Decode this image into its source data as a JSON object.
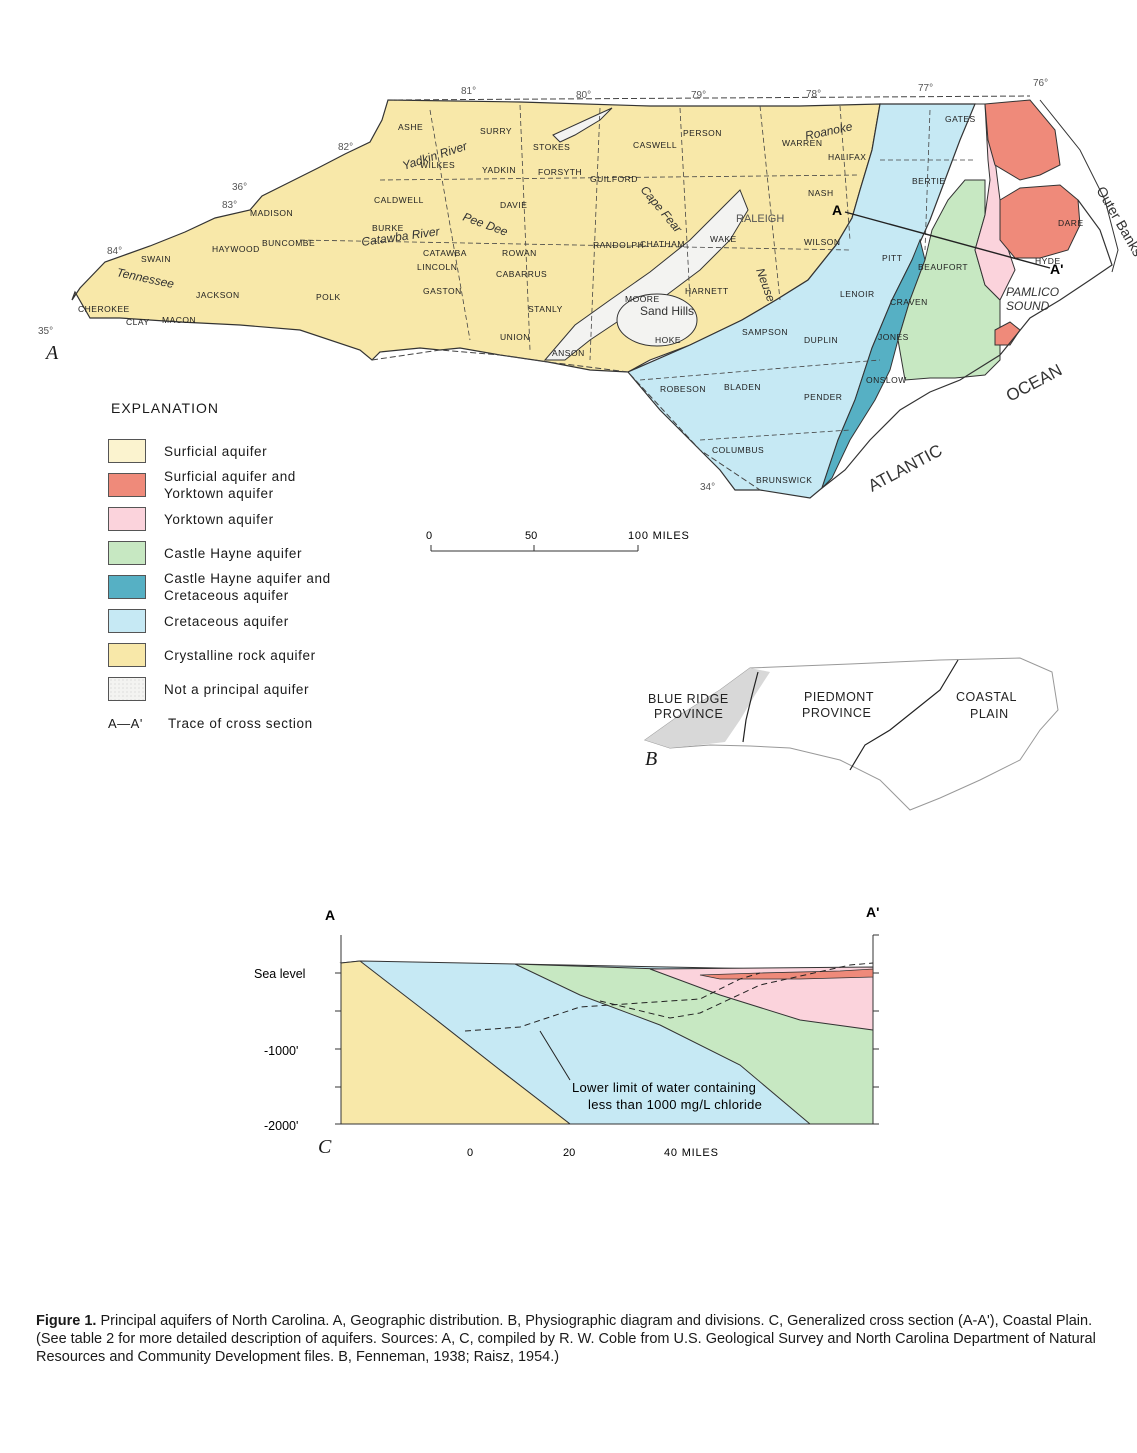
{
  "panel_a": {
    "letter": "A",
    "longitudes": [
      "81°",
      "80°",
      "79°",
      "78°",
      "77°",
      "76°"
    ],
    "latitudes": {
      "n36": "36°",
      "n35": "35°",
      "n34": "34°"
    },
    "west_longitudes": [
      "82°",
      "83°",
      "84°"
    ],
    "counties": [
      "ASHE",
      "SURRY",
      "STOKES",
      "PERSON",
      "CASWELL",
      "WARREN",
      "HALIFAX",
      "NASH",
      "WILKES",
      "YADKIN",
      "FORSYTH",
      "GUILFORD",
      "DAVIE",
      "ROWAN",
      "CABARRUS",
      "STANLY",
      "UNION",
      "ANSON",
      "RANDOLPH",
      "CHATHAM",
      "WAKE",
      "WILSON",
      "HARNETT",
      "MOORE",
      "HOKE",
      "SAMPSON",
      "DUPLIN",
      "ROBESON",
      "BLADEN",
      "COLUMBUS",
      "BRUNSWICK",
      "PENDER",
      "ONSLOW",
      "JONES",
      "CRAVEN",
      "LENOIR",
      "PITT",
      "BEAUFORT",
      "BERTIE",
      "GATES",
      "HYDE",
      "DARE",
      "MACON",
      "CHEROKEE",
      "CLAY",
      "MADISON",
      "BUNCOMBE",
      "BURKE",
      "CALDWELL",
      "CATAWBA",
      "LINCOLN",
      "GASTON",
      "POLK",
      "HAYWOOD",
      "JACKSON",
      "SWAIN"
    ],
    "places": {
      "raleigh": "RALEIGH",
      "sand_hills": "Sand Hills"
    },
    "rivers": {
      "yadkin": "Yadkin River",
      "catawba": "Catawba River",
      "neuse": "Neuse",
      "roanoke": "Roanoke",
      "pee_dee": "Pee Dee",
      "cape_fear": "Cape Fear",
      "tennessee": "Tennessee"
    },
    "water": {
      "outer_banks": "Outer Banks",
      "pamlico": "PAMLICO\nSOUND",
      "atlantic": "ATLANTIC",
      "ocean": "OCEAN"
    },
    "section_a": "A",
    "section_a_prime": "A'",
    "scale": {
      "ticks": [
        "0",
        "50",
        "100 MILES"
      ]
    }
  },
  "legend": {
    "title": "EXPLANATION",
    "items": [
      {
        "label": "Surficial aquifer",
        "color": "#fbf3cf"
      },
      {
        "label": "Surficial aquifer and\n  Yorktown aquifer",
        "color": "#ef8a7a"
      },
      {
        "label": "Yorktown aquifer",
        "color": "#fbd3dc"
      },
      {
        "label": "Castle Hayne aquifer",
        "color": "#c7e8c2"
      },
      {
        "label": "Castle Hayne aquifer and\n  Cretaceous aquifer",
        "color": "#56b0c4"
      },
      {
        "label": "Cretaceous aquifer",
        "color": "#c6e9f4"
      },
      {
        "label": "Crystalline rock aquifer",
        "color": "#f8e8a9"
      },
      {
        "label": "Not a principal aquifer",
        "color": "#f3f3f1"
      }
    ],
    "trace_key": "A—A'",
    "trace_label": "Trace of cross section"
  },
  "panel_b": {
    "letter": "B",
    "provinces": [
      "BLUE RIDGE\nPROVINCE",
      "PIEDMONT\nPROVINCE",
      "COASTAL\nPLAIN"
    ]
  },
  "panel_c": {
    "letter": "C",
    "end_left": "A",
    "end_right": "A'",
    "depth_labels": [
      "Sea level",
      "-1000'",
      "-2000'"
    ],
    "annotation": "Lower limit of water containing\nless than 1000 mg/L chloride",
    "scale": {
      "ticks": [
        "0",
        "20",
        "40 MILES"
      ]
    }
  },
  "caption": {
    "lead": "Figure 1.",
    "text": "Principal aquifers of North Carolina. A, Geographic distribution. B, Physiographic diagram and divisions. C, Generalized cross section (A-A'), Coastal Plain. (See table 2 for more detailed description of aquifers. Sources: A, C, compiled by R. W. Coble from U.S. Geological Survey and North Carolina Department of Natural Resources and Community Development files. B, Fenneman, 1938; Raisz, 1954.)"
  }
}
